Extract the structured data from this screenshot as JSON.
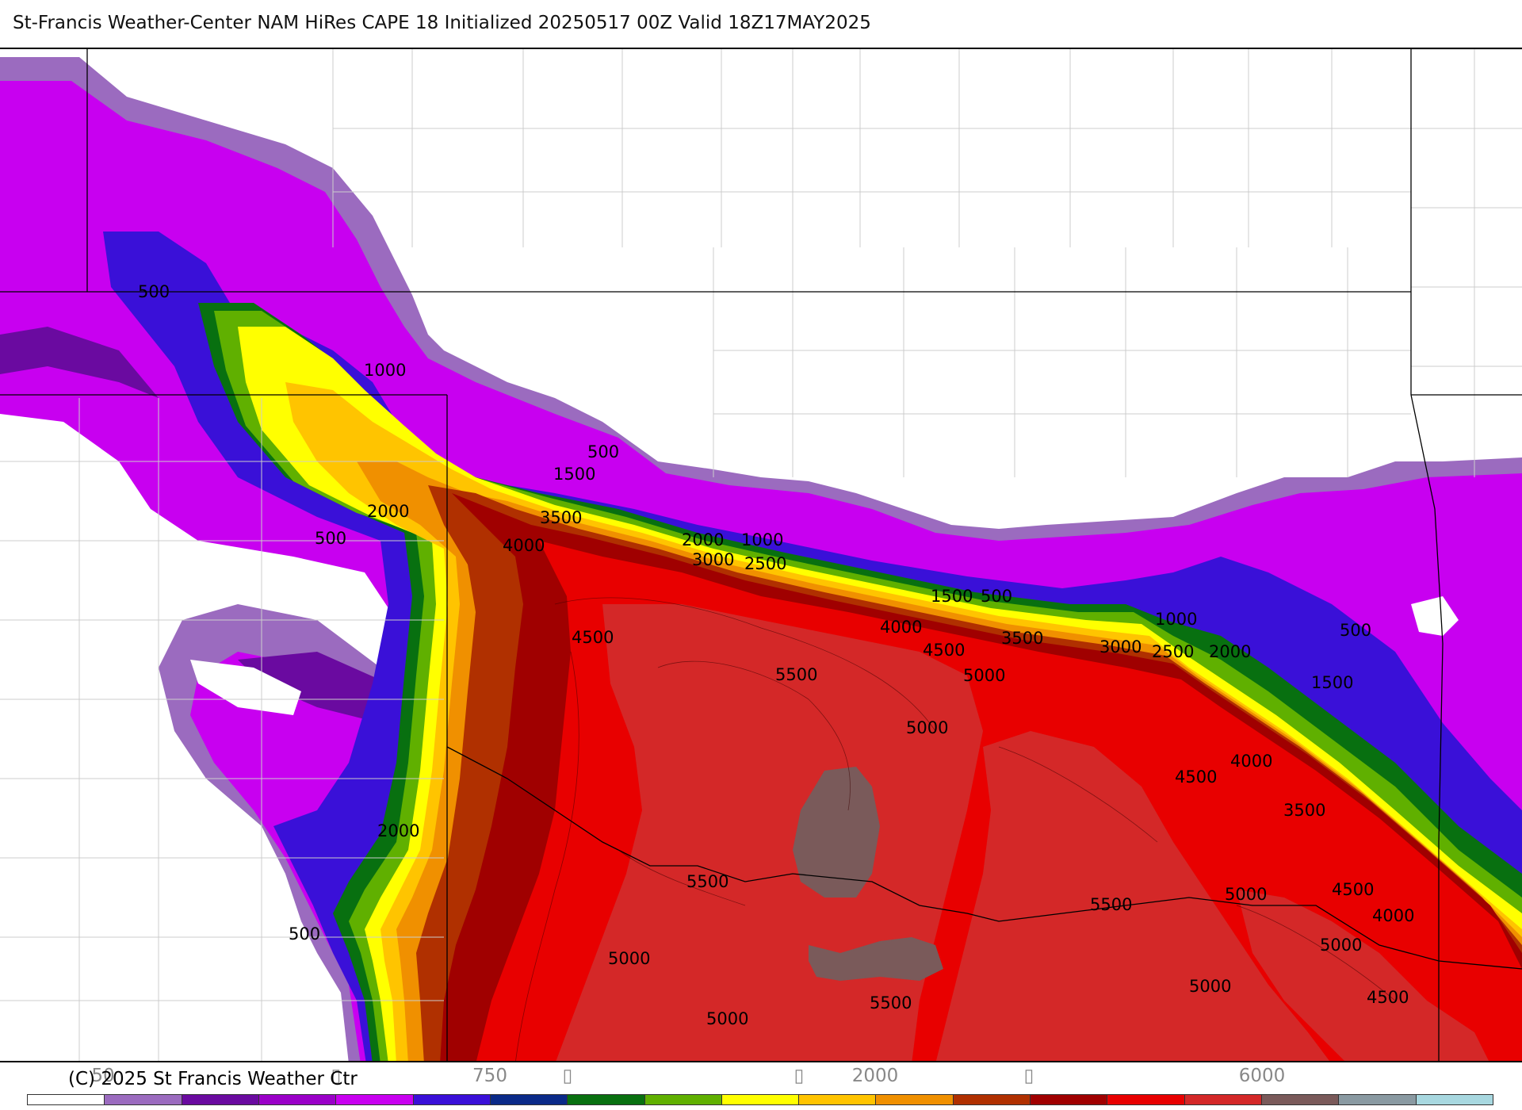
{
  "title": "St-Francis Weather-Center NAM HiRes CAPE  18 Initialized 20250517 00Z Valid 18Z17MAY2025",
  "copyright": "(C) 2025 St Francis Weather Ctr",
  "colorbar": {
    "tick_labels": [
      "50",
      "750",
      "2000",
      "6000"
    ],
    "colors": [
      "#ffffff",
      "#9b6bbf",
      "#6a0aa0",
      "#9a00c8",
      "#c800f0",
      "#3a10d8",
      "#0a2a88",
      "#087010",
      "#60b000",
      "#ffff00",
      "#ffc400",
      "#f09000",
      "#b03000",
      "#a00000",
      "#e80000",
      "#d42828",
      "#7a5a5a",
      "#8a9aa2",
      "#a8d8e0"
    ]
  },
  "contour_labels": [
    "500",
    "1000",
    "500",
    "2000",
    "500",
    "1500",
    "3500",
    "4000",
    "2000",
    "1000",
    "3000",
    "2500",
    "4500",
    "1500",
    "500",
    "4000",
    "4500",
    "3500",
    "5500",
    "5000",
    "1000",
    "3000",
    "2500",
    "2000",
    "500",
    "1500",
    "5000",
    "4500",
    "4000",
    "2000",
    "3500",
    "5500",
    "5500",
    "5000",
    "4500",
    "500",
    "4000",
    "5000",
    "5000",
    "5000",
    "5500",
    "5000",
    "4500"
  ],
  "legend_symbols": [
    "▯",
    "▯",
    "▯",
    "▯"
  ]
}
